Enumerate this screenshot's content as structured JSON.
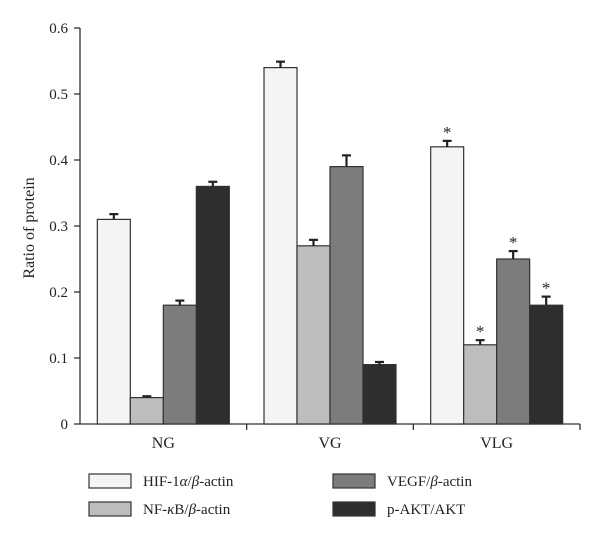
{
  "chart_data": {
    "type": "bar",
    "title": "",
    "xlabel": "",
    "ylabel": "Ratio of protein",
    "ylim": [
      0,
      0.6
    ],
    "yticks": [
      "0",
      "0.1",
      "0.2",
      "0.3",
      "0.4",
      "0.5",
      "0.6"
    ],
    "categories": [
      "NG",
      "VG",
      "VLG"
    ],
    "grid": false,
    "legend_position": "bottom",
    "series": [
      {
        "name": "HIF-1α/β-actin",
        "name_main": "HIF-1",
        "name_greek": "α",
        "name_sep": "/",
        "name_beta": "β",
        "name_tail": "-actin",
        "color": "#f4f4f4",
        "values": [
          0.31,
          0.54,
          0.42
        ],
        "errors": [
          0.008,
          0.009,
          0.009
        ],
        "significant": [
          false,
          false,
          true
        ]
      },
      {
        "name": "NF-κB/β-actin",
        "name_main": "NF-",
        "name_greek": "κ",
        "name_sep": "B/",
        "name_beta": "β",
        "name_tail": "-actin",
        "color": "#bdbdbd",
        "values": [
          0.04,
          0.27,
          0.12
        ],
        "errors": [
          0.002,
          0.009,
          0.007
        ],
        "significant": [
          false,
          false,
          true
        ]
      },
      {
        "name": "VEGF/β-actin",
        "name_main": "VEGF/",
        "name_greek": "",
        "name_sep": "",
        "name_beta": "β",
        "name_tail": "-actin",
        "color": "#7c7c7c",
        "values": [
          0.18,
          0.39,
          0.25
        ],
        "errors": [
          0.007,
          0.017,
          0.012
        ],
        "significant": [
          false,
          false,
          true
        ]
      },
      {
        "name": "p-AKT/AKT",
        "name_main": "p-AKT/AKT",
        "name_greek": "",
        "name_sep": "",
        "name_beta": "",
        "name_tail": "",
        "color": "#2e2e2e",
        "values": [
          0.36,
          0.09,
          0.18
        ],
        "errors": [
          0.007,
          0.004,
          0.013
        ],
        "significant": [
          false,
          false,
          true
        ]
      }
    ],
    "significance_marker": "*"
  }
}
